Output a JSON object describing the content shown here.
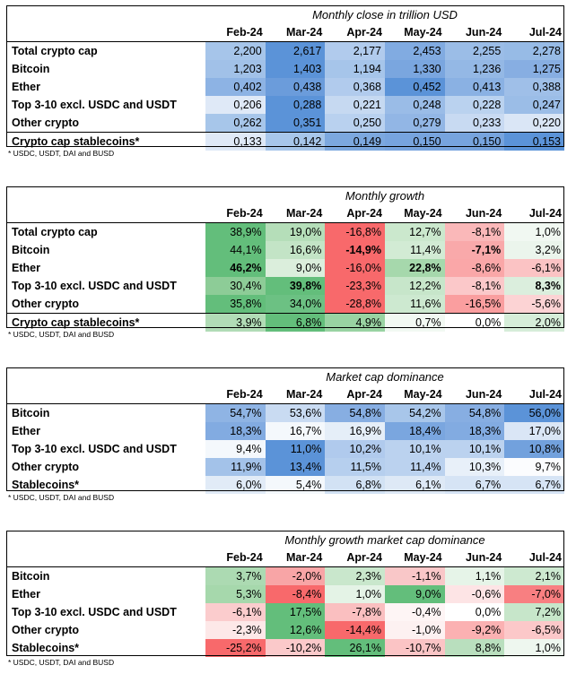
{
  "months": [
    "Feb-24",
    "Mar-24",
    "Apr-24",
    "May-24",
    "Jun-24",
    "Jul-24"
  ],
  "footnote": "* USDC, USDT, DAI and BUSD",
  "tables": [
    {
      "title": "Monthly close in trillion USD",
      "rows": [
        {
          "label": "Total crypto cap",
          "values": [
            "2,200",
            "2,617",
            "2,177",
            "2,453",
            "2,255",
            "2,278"
          ],
          "colors": [
            "#a6c5ea",
            "#5b93d8",
            "#b1cbed",
            "#81abe1",
            "#9bbde7",
            "#97bbe6"
          ],
          "bold": [
            false,
            false,
            false,
            false,
            false,
            false
          ]
        },
        {
          "label": "Bitcoin",
          "values": [
            "1,203",
            "1,403",
            "1,194",
            "1,330",
            "1,236",
            "1,275"
          ],
          "colors": [
            "#a1c1e8",
            "#5b93d8",
            "#a6c5ea",
            "#7aa6df",
            "#94b8e5",
            "#87aee2"
          ],
          "bold": [
            false,
            false,
            false,
            false,
            false,
            false
          ]
        },
        {
          "label": "Ether",
          "values": [
            "0,402",
            "0,438",
            "0,368",
            "0,452",
            "0,413",
            "0,388"
          ],
          "colors": [
            "#8db3e4",
            "#6b9cdb",
            "#b1cbed",
            "#5b93d8",
            "#8ab1e3",
            "#9fbfe8"
          ],
          "bold": [
            false,
            false,
            false,
            false,
            false,
            false
          ]
        },
        {
          "label": "Top 3-10 excl. USDC and USDT",
          "values": [
            "0,206",
            "0,288",
            "0,221",
            "0,248",
            "0,228",
            "0,247"
          ],
          "colors": [
            "#dfe9f7",
            "#5b93d8",
            "#c6d9f1",
            "#9abce7",
            "#bad2ef",
            "#9bbde7"
          ],
          "bold": [
            false,
            false,
            false,
            false,
            false,
            false
          ]
        },
        {
          "label": "Other crypto",
          "values": [
            "0,262",
            "0,351",
            "0,250",
            "0,279",
            "0,233",
            "0,220"
          ],
          "colors": [
            "#a7c6ea",
            "#5b93d8",
            "#b9d1ef",
            "#92b6e5",
            "#c8daf2",
            "#dae6f6"
          ],
          "bold": [
            false,
            false,
            false,
            false,
            false,
            false
          ]
        },
        {
          "label": "Crypto cap stablecoins*",
          "values": [
            "0,133",
            "0,142",
            "0,149",
            "0,150",
            "0,150",
            "0,153"
          ],
          "colors": [
            "#dfe9f7",
            "#a7c6ea",
            "#7ca8df",
            "#77a4de",
            "#77a4de",
            "#5b93d8"
          ],
          "bold": [
            false,
            false,
            false,
            false,
            false,
            false
          ]
        }
      ]
    },
    {
      "title": "Monthly growth",
      "rows": [
        {
          "label": "Total crypto cap",
          "values": [
            "38,9%",
            "19,0%",
            "-16,8%",
            "12,7%",
            "-8,1%",
            "1,0%"
          ],
          "colors": [
            "#63be7b",
            "#b5deb9",
            "#f8696b",
            "#cbe8cd",
            "#fab8b9",
            "#f1f8f2"
          ],
          "bold": [
            false,
            false,
            false,
            false,
            false,
            false
          ]
        },
        {
          "label": "Bitcoin",
          "values": [
            "44,1%",
            "16,6%",
            "-14,9%",
            "11,4%",
            "-7,1%",
            "3,2%"
          ],
          "colors": [
            "#63be7b",
            "#c3e4c6",
            "#f8696b",
            "#d2ebd4",
            "#f9a9aa",
            "#ebf5ec"
          ],
          "bold": [
            false,
            false,
            true,
            false,
            true,
            false
          ]
        },
        {
          "label": "Ether",
          "values": [
            "46,2%",
            "9,0%",
            "-16,0%",
            "22,8%",
            "-8,6%",
            "-6,1%"
          ],
          "colors": [
            "#63be7b",
            "#dbeedc",
            "#f8696b",
            "#a6d8ac",
            "#faa7a8",
            "#fbc3c4"
          ],
          "bold": [
            true,
            false,
            false,
            true,
            false,
            false
          ]
        },
        {
          "label": "Top 3-10 excl. USDC and USDT",
          "values": [
            "30,4%",
            "39,8%",
            "-23,3%",
            "12,2%",
            "-8,1%",
            "8,3%"
          ],
          "colors": [
            "#8dcc97",
            "#63be7b",
            "#f8696b",
            "#c7e6ca",
            "#fbc8c9",
            "#dbeedd"
          ],
          "bold": [
            false,
            true,
            false,
            false,
            false,
            true
          ]
        },
        {
          "label": "Other crypto",
          "values": [
            "35,8%",
            "34,0%",
            "-28,8%",
            "11,6%",
            "-16,5%",
            "-5,6%"
          ],
          "colors": [
            "#63be7b",
            "#6cc183",
            "#f8696b",
            "#cde9d0",
            "#fa9e9f",
            "#fcd3d4"
          ],
          "bold": [
            false,
            false,
            false,
            false,
            false,
            false
          ]
        },
        {
          "label": "Crypto cap stablecoins*",
          "values": [
            "3,9%",
            "6,8%",
            "4,9%",
            "0,7%",
            "0,0%",
            "2,0%"
          ],
          "colors": [
            "#b1dcb6",
            "#63be7b",
            "#99d3a2",
            "#f2f9f3",
            "#ffffff",
            "#d6edd9"
          ],
          "bold": [
            false,
            false,
            false,
            false,
            false,
            false
          ]
        }
      ]
    },
    {
      "title": "Market cap dominance",
      "rows": [
        {
          "label": "Bitcoin",
          "values": [
            "54,7%",
            "53,6%",
            "54,8%",
            "54,2%",
            "54,8%",
            "56,0%"
          ],
          "colors": [
            "#8fb4e4",
            "#c9dbf2",
            "#87aee2",
            "#a8c6ea",
            "#87aee2",
            "#5b93d8"
          ],
          "bold": [
            false,
            false,
            false,
            false,
            false,
            false
          ]
        },
        {
          "label": "Ether",
          "values": [
            "18,3%",
            "16,7%",
            "16,9%",
            "18,4%",
            "18,3%",
            "17,0%"
          ],
          "colors": [
            "#82abe1",
            "#f4f8fc",
            "#e5eef8",
            "#7aa6df",
            "#82abe1",
            "#dae6f6"
          ],
          "bold": [
            false,
            false,
            false,
            false,
            false,
            false
          ]
        },
        {
          "label": "Top 3-10 excl. USDC and USDT",
          "values": [
            "9,4%",
            "11,0%",
            "10,2%",
            "10,1%",
            "10,1%",
            "10,8%"
          ],
          "colors": [
            "#f4f8fc",
            "#5b93d8",
            "#b0caed",
            "#bbd2ef",
            "#bbd2ef",
            "#72a1dd"
          ],
          "bold": [
            false,
            false,
            false,
            false,
            false,
            false
          ]
        },
        {
          "label": "Other crypto",
          "values": [
            "11,9%",
            "13,4%",
            "11,5%",
            "11,4%",
            "10,3%",
            "9,7%"
          ],
          "colors": [
            "#a3c2e9",
            "#5b93d8",
            "#b6cfee",
            "#bbd2ef",
            "#e8f0f9",
            "#fbfcfe"
          ],
          "bold": [
            false,
            false,
            false,
            false,
            false,
            false
          ]
        },
        {
          "label": "Stablecoins*",
          "values": [
            "6,0%",
            "5,4%",
            "6,8%",
            "6,1%",
            "6,7%",
            "6,7%"
          ],
          "colors": [
            "#e1ebf7",
            "#f4f8fc",
            "#d2e2f4",
            "#dee9f6",
            "#d6e4f5",
            "#d6e4f5"
          ],
          "bold": [
            false,
            false,
            false,
            false,
            false,
            false
          ]
        }
      ]
    },
    {
      "title": "Monthly growth market cap dominance",
      "rows": [
        {
          "label": "Bitcoin",
          "values": [
            "3,7%",
            "-2,0%",
            "2,3%",
            "-1,1%",
            "1,1%",
            "2,1%"
          ],
          "colors": [
            "#acdab2",
            "#f8a5a6",
            "#c9e7cc",
            "#f9c7c8",
            "#e6f4e8",
            "#cde9d0"
          ],
          "bold": [
            false,
            false,
            false,
            false,
            false,
            false
          ]
        },
        {
          "label": "Ether",
          "values": [
            "5,3%",
            "-8,4%",
            "1,0%",
            "9,0%",
            "-0,6%",
            "-7,0%"
          ],
          "colors": [
            "#a6d8ac",
            "#f8696b",
            "#e4f3e6",
            "#63be7b",
            "#fde4e5",
            "#f87f81"
          ],
          "bold": [
            false,
            false,
            false,
            false,
            false,
            false
          ]
        },
        {
          "label": "Top 3-10 excl. USDC and USDT",
          "values": [
            "-6,1%",
            "17,5%",
            "-7,8%",
            "-0,4%",
            "0,0%",
            "7,2%"
          ],
          "colors": [
            "#fbcccd",
            "#63be7b",
            "#fabfc0",
            "#fef5f5",
            "#ffffff",
            "#c7e6ca"
          ],
          "bold": [
            false,
            false,
            false,
            false,
            false,
            false
          ]
        },
        {
          "label": "Other crypto",
          "values": [
            "-2,3%",
            "12,6%",
            "-14,4%",
            "-1,0%",
            "-9,2%",
            "-6,5%"
          ],
          "colors": [
            "#fde8e8",
            "#63be7b",
            "#f8696b",
            "#fdf1f1",
            "#fbb1b2",
            "#fcc8c9"
          ],
          "bold": [
            false,
            false,
            false,
            false,
            false,
            false
          ]
        },
        {
          "label": "Stablecoins*",
          "values": [
            "-25,2%",
            "-10,2%",
            "26,1%",
            "-10,7%",
            "8,8%",
            "1,0%"
          ],
          "colors": [
            "#f8696b",
            "#fbc9ca",
            "#63be7b",
            "#fbc4c5",
            "#b9dfbe",
            "#eef7ef"
          ],
          "bold": [
            false,
            false,
            false,
            false,
            false,
            false
          ]
        }
      ]
    }
  ]
}
